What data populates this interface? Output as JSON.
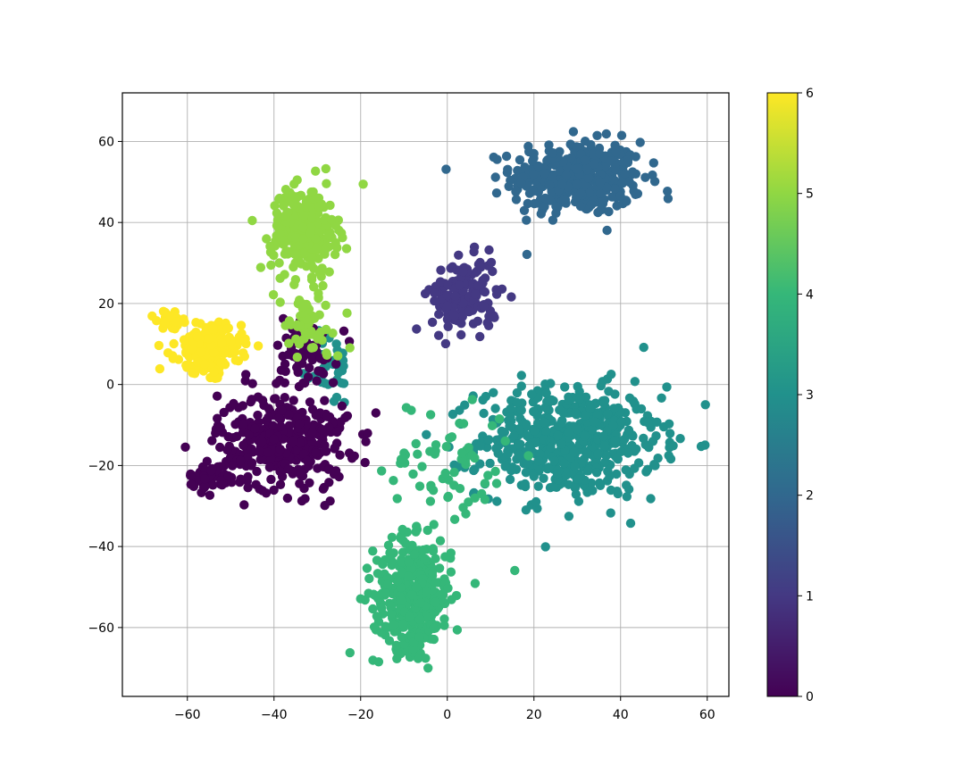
{
  "chart_data": {
    "type": "scatter",
    "title": "",
    "xlabel": "",
    "ylabel": "",
    "xlim": [
      -75,
      65
    ],
    "ylim": [
      -77,
      72
    ],
    "xticks": [
      -60,
      -40,
      -20,
      0,
      20,
      40,
      60
    ],
    "yticks": [
      -60,
      -40,
      -20,
      0,
      20,
      40,
      60
    ],
    "xtick_labels": [
      "−60",
      "−40",
      "−20",
      "0",
      "20",
      "40",
      "60"
    ],
    "ytick_labels": [
      "−60",
      "−40",
      "−20",
      "0",
      "20",
      "40",
      "60"
    ],
    "grid": true,
    "colormap": "viridis",
    "colorbar": {
      "range": [
        0,
        6
      ],
      "ticks": [
        0,
        1,
        2,
        3,
        4,
        5,
        6
      ],
      "tick_labels": [
        "0",
        "1",
        "2",
        "3",
        "4",
        "5",
        "6"
      ],
      "colors": [
        "#440154",
        "#443983",
        "#31688e",
        "#21918c",
        "#35b779",
        "#90d743",
        "#fde725"
      ]
    },
    "clusters": [
      {
        "label": 2,
        "center": [
          30,
          51
        ],
        "spread": [
          10,
          6
        ],
        "count": 420,
        "color": "#31688e"
      },
      {
        "label": 3,
        "center": [
          28,
          -14
        ],
        "spread": [
          14,
          9
        ],
        "count": 560,
        "color": "#21918c"
      },
      {
        "label": 3,
        "center": [
          -27,
          4
        ],
        "spread": [
          3,
          6
        ],
        "count": 40,
        "color": "#21918c"
      },
      {
        "label": 4,
        "center": [
          -8,
          -52
        ],
        "spread": [
          6,
          9
        ],
        "count": 380,
        "color": "#35b779"
      },
      {
        "label": 4,
        "center": [
          0,
          -20
        ],
        "spread": [
          10,
          12
        ],
        "count": 70,
        "color": "#35b779"
      },
      {
        "label": 1,
        "center": [
          4,
          22
        ],
        "spread": [
          5,
          6
        ],
        "count": 160,
        "color": "#443983"
      },
      {
        "label": 0,
        "center": [
          -38,
          -14
        ],
        "spread": [
          10,
          8
        ],
        "count": 340,
        "color": "#440154"
      },
      {
        "label": 0,
        "center": [
          -55,
          -23
        ],
        "spread": [
          3,
          2
        ],
        "count": 50,
        "color": "#440154"
      },
      {
        "label": 0,
        "center": [
          -33,
          8
        ],
        "spread": [
          5,
          6
        ],
        "count": 70,
        "color": "#440154"
      },
      {
        "label": 5,
        "center": [
          -33,
          38
        ],
        "spread": [
          5,
          7
        ],
        "count": 280,
        "color": "#90d743"
      },
      {
        "label": 5,
        "center": [
          -32,
          15
        ],
        "spread": [
          5,
          6
        ],
        "count": 60,
        "color": "#90d743"
      },
      {
        "label": 6,
        "center": [
          -55,
          9
        ],
        "spread": [
          5,
          4
        ],
        "count": 190,
        "color": "#fde725"
      },
      {
        "label": 6,
        "center": [
          -64,
          16
        ],
        "spread": [
          2,
          1.5
        ],
        "count": 40,
        "color": "#fde725"
      }
    ]
  }
}
